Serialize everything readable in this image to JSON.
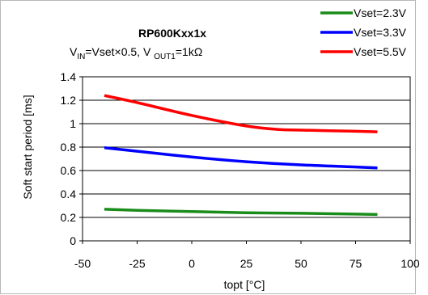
{
  "chart_data": {
    "type": "line",
    "title": "RP600Kxx1x",
    "subtitle": {
      "v": "V",
      "v_sub": "IN",
      "mid": "=Vset×0.5, V ",
      "out_sub": "OUT1",
      "end": "=1kΩ"
    },
    "xlabel": "topt [°C]",
    "ylabel": "Soft start period [ms]",
    "xlim": [
      -50,
      100
    ],
    "ylim": [
      0,
      1.4
    ],
    "xticks": [
      -50,
      -25,
      0,
      25,
      50,
      75,
      100
    ],
    "yticks": [
      0,
      0.2,
      0.4,
      0.6,
      0.8,
      1,
      1.2,
      1.4
    ],
    "grid": true,
    "legend_position": "top-right",
    "series": [
      {
        "name": "Vset=2.3V",
        "color": "#1a8c1a",
        "x": [
          -40,
          -25,
          0,
          25,
          50,
          75,
          85
        ],
        "y": [
          0.27,
          0.26,
          0.25,
          0.24,
          0.235,
          0.228,
          0.225
        ]
      },
      {
        "name": "Vset=3.3V",
        "color": "#0000ff",
        "x": [
          -40,
          -25,
          0,
          25,
          50,
          75,
          85
        ],
        "y": [
          0.795,
          0.765,
          0.715,
          0.675,
          0.648,
          0.63,
          0.622
        ]
      },
      {
        "name": "Vset=5.5V",
        "color": "#ff0000",
        "x": [
          -40,
          -25,
          0,
          25,
          40,
          50,
          75,
          85
        ],
        "y": [
          1.24,
          1.18,
          1.07,
          0.98,
          0.95,
          0.945,
          0.935,
          0.93
        ]
      }
    ]
  }
}
